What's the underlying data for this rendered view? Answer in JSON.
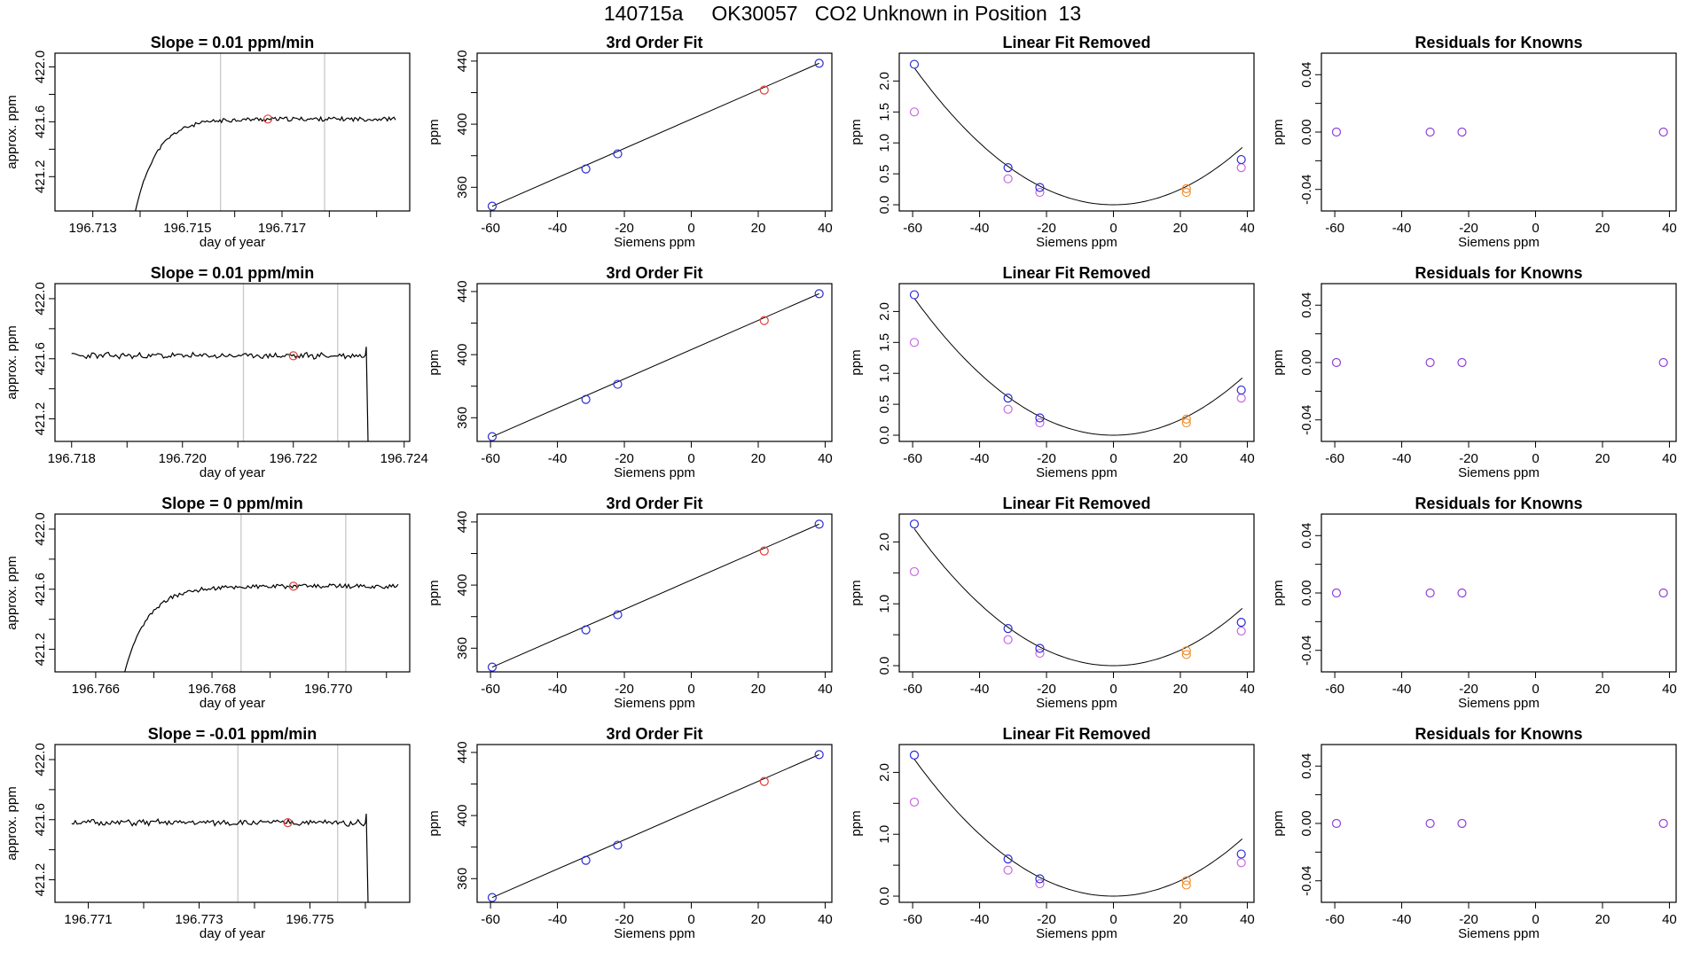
{
  "title": "140715a     OK30057   CO2 Unknown in Position  13",
  "colors": {
    "trace": "#000000",
    "vline": "#c8c8c8",
    "marker": "#e0403a",
    "known": "#2b2bd8",
    "sample": "#f09030",
    "residual": "#9040d8",
    "removed": "#c866e0",
    "curve": "#000000"
  },
  "chart_data": [
    {
      "id": "r1-ts",
      "type": "line",
      "title": "Slope =  0.01  ppm/min",
      "xlabel": "day of year",
      "ylabel": "approx. ppm",
      "xlim": [
        196.7122,
        196.7197
      ],
      "ylim": [
        420.95,
        422.1
      ],
      "xticks": [
        196.713,
        196.714,
        196.715,
        196.716,
        196.717,
        196.718,
        196.719
      ],
      "xtick_labels": [
        "196.713",
        "",
        "196.715",
        "",
        "196.717",
        "",
        ""
      ],
      "yticks": [
        421.2,
        421.4,
        421.6,
        421.8,
        422.0
      ],
      "ytick_labels": [
        "421.2",
        "",
        "421.6",
        "",
        "422.0"
      ],
      "vlines": [
        196.7157,
        196.7179
      ],
      "marker": [
        196.7167,
        421.62
      ],
      "trace": {
        "shape": "rise",
        "x0": 196.7139,
        "x1": 196.7194,
        "level": 421.62,
        "start": 420.95,
        "tau": 0.00045,
        "seed": 11
      }
    },
    {
      "id": "r1-fit",
      "type": "scatter",
      "title": "3rd Order Fit",
      "xlabel": "Siemens ppm",
      "ylabel": "ppm",
      "xlim": [
        -64,
        42
      ],
      "ylim": [
        345,
        445
      ],
      "xticks": [
        -60,
        -40,
        -20,
        0,
        20,
        40
      ],
      "xtick_labels": [
        "-60",
        "-40",
        "-20",
        "0",
        "20",
        "40"
      ],
      "yticks": [
        360,
        380,
        400,
        420,
        440
      ],
      "ytick_labels": [
        "360",
        "",
        "400",
        "",
        "440"
      ],
      "known_points": [
        [
          -59.5,
          348.0
        ],
        [
          -31.5,
          371.6
        ],
        [
          -22.0,
          381.2
        ],
        [
          38.2,
          438.6
        ]
      ],
      "sample_points": [
        [
          21.8,
          421.6
        ]
      ],
      "line": [
        [
          -59.5,
          348.0
        ],
        [
          38.2,
          438.6
        ]
      ]
    },
    {
      "id": "r1-lin",
      "type": "scatter",
      "title": "Linear Fit Removed",
      "xlabel": "Siemens ppm",
      "ylabel": "ppm",
      "xlim": [
        -64,
        42
      ],
      "ylim": [
        -0.1,
        2.45
      ],
      "xticks": [
        -60,
        -40,
        -20,
        0,
        20,
        40
      ],
      "xtick_labels": [
        "-60",
        "-40",
        "-20",
        "0",
        "20",
        "40"
      ],
      "yticks": [
        0,
        0.5,
        1,
        1.5,
        2
      ],
      "ytick_labels": [
        "0.0",
        "0.5",
        "1.0",
        "1.5",
        "2.0"
      ],
      "curve_coef": 0.000625,
      "known_points": [
        [
          -59.5,
          2.27
        ],
        [
          -31.5,
          0.6
        ],
        [
          -22.0,
          0.28
        ],
        [
          38.2,
          0.73
        ]
      ],
      "sample_points": [
        [
          21.8,
          0.26
        ],
        [
          21.8,
          0.2
        ]
      ],
      "removed_points": [
        [
          -59.5,
          1.5
        ],
        [
          -31.5,
          0.42
        ],
        [
          -22.0,
          0.2
        ],
        [
          38.2,
          0.6
        ]
      ]
    },
    {
      "id": "r1-res",
      "type": "scatter",
      "title": "Residuals for Knowns",
      "xlabel": "Siemens ppm",
      "ylabel": "ppm",
      "xlim": [
        -64,
        42
      ],
      "ylim": [
        -0.055,
        0.055
      ],
      "xticks": [
        -60,
        -40,
        -20,
        0,
        20,
        40
      ],
      "xtick_labels": [
        "-60",
        "-40",
        "-20",
        "0",
        "20",
        "40"
      ],
      "yticks": [
        -0.04,
        -0.02,
        0,
        0.02,
        0.04
      ],
      "ytick_labels": [
        "-0.04",
        "",
        "0.00",
        "",
        "0.04"
      ],
      "residual_points": [
        [
          -59.5,
          0
        ],
        [
          -31.5,
          0
        ],
        [
          -22.0,
          0
        ],
        [
          38.2,
          0
        ]
      ]
    },
    {
      "id": "r2-ts",
      "type": "line",
      "title": "Slope =  0.01  ppm/min",
      "xlabel": "day of year",
      "ylabel": "approx. ppm",
      "xlim": [
        196.7177,
        196.7241
      ],
      "ylim": [
        421.05,
        422.1
      ],
      "xticks": [
        196.718,
        196.719,
        196.72,
        196.721,
        196.722,
        196.723,
        196.724
      ],
      "xtick_labels": [
        "196.718",
        "",
        "196.720",
        "",
        "196.722",
        "",
        "196.724"
      ],
      "vlines": [
        196.7211,
        196.7228
      ],
      "marker": [
        196.722,
        421.62
      ],
      "yticks": [
        421.2,
        421.4,
        421.6,
        421.8,
        422.0
      ],
      "ytick_labels": [
        "421.2",
        "",
        "421.6",
        "",
        "422.0"
      ],
      "trace": {
        "shape": "drop",
        "x0": 196.718,
        "x1": 196.7233,
        "level": 421.62,
        "end": 421.05,
        "seed": 23
      }
    },
    {
      "id": "r2-fit",
      "type": "scatter",
      "title": "3rd Order Fit",
      "xlabel": "Siemens ppm",
      "ylabel": "ppm",
      "xlim": [
        -64,
        42
      ],
      "ylim": [
        345,
        445
      ],
      "xticks": [
        -60,
        -40,
        -20,
        0,
        20,
        40
      ],
      "xtick_labels": [
        "-60",
        "-40",
        "-20",
        "0",
        "20",
        "40"
      ],
      "yticks": [
        360,
        380,
        400,
        420,
        440
      ],
      "ytick_labels": [
        "360",
        "",
        "400",
        "",
        "440"
      ],
      "known_points": [
        [
          -59.5,
          348.0
        ],
        [
          -31.5,
          371.6
        ],
        [
          -22.0,
          381.2
        ],
        [
          38.2,
          438.6
        ]
      ],
      "sample_points": [
        [
          21.8,
          421.6
        ]
      ],
      "line": [
        [
          -59.5,
          348.0
        ],
        [
          38.2,
          438.6
        ]
      ]
    },
    {
      "id": "r2-lin",
      "type": "scatter",
      "title": "Linear Fit Removed",
      "xlabel": "Siemens ppm",
      "ylabel": "ppm",
      "xlim": [
        -64,
        42
      ],
      "ylim": [
        -0.1,
        2.45
      ],
      "xticks": [
        -60,
        -40,
        -20,
        0,
        20,
        40
      ],
      "xtick_labels": [
        "-60",
        "-40",
        "-20",
        "0",
        "20",
        "40"
      ],
      "yticks": [
        0,
        0.5,
        1,
        1.5,
        2
      ],
      "ytick_labels": [
        "0.0",
        "0.5",
        "1.0",
        "1.5",
        "2.0"
      ],
      "curve_coef": 0.000625,
      "known_points": [
        [
          -59.5,
          2.27
        ],
        [
          -31.5,
          0.6
        ],
        [
          -22.0,
          0.28
        ],
        [
          38.2,
          0.73
        ]
      ],
      "sample_points": [
        [
          21.8,
          0.26
        ],
        [
          21.8,
          0.2
        ]
      ],
      "removed_points": [
        [
          -59.5,
          1.5
        ],
        [
          -31.5,
          0.42
        ],
        [
          -22.0,
          0.2
        ],
        [
          38.2,
          0.6
        ]
      ]
    },
    {
      "id": "r2-res",
      "type": "scatter",
      "title": "Residuals for Knowns",
      "xlabel": "Siemens ppm",
      "ylabel": "ppm",
      "xlim": [
        -64,
        42
      ],
      "ylim": [
        -0.055,
        0.055
      ],
      "xticks": [
        -60,
        -40,
        -20,
        0,
        20,
        40
      ],
      "xtick_labels": [
        "-60",
        "-40",
        "-20",
        "0",
        "20",
        "40"
      ],
      "yticks": [
        -0.04,
        -0.02,
        0,
        0.02,
        0.04
      ],
      "ytick_labels": [
        "-0.04",
        "",
        "0.00",
        "",
        "0.04"
      ],
      "residual_points": [
        [
          -59.5,
          0
        ],
        [
          -31.5,
          0
        ],
        [
          -22.0,
          0
        ],
        [
          38.2,
          0
        ]
      ]
    },
    {
      "id": "r3-ts",
      "type": "line",
      "title": "Slope =  0  ppm/min",
      "xlabel": "day of year",
      "ylabel": "approx. ppm",
      "xlim": [
        196.7653,
        196.7714
      ],
      "ylim": [
        421.05,
        422.1
      ],
      "xticks": [
        196.766,
        196.767,
        196.768,
        196.769,
        196.77,
        196.771
      ],
      "xtick_labels": [
        "196.766",
        "",
        "196.768",
        "",
        "196.770",
        ""
      ],
      "vlines": [
        196.7685,
        196.7703
      ],
      "marker": [
        196.7694,
        421.62
      ],
      "yticks": [
        421.2,
        421.4,
        421.6,
        421.8,
        422.0
      ],
      "ytick_labels": [
        "421.2",
        "",
        "421.6",
        "",
        "422.0"
      ],
      "trace": {
        "shape": "rise",
        "x0": 196.7665,
        "x1": 196.7712,
        "level": 421.62,
        "start": 421.05,
        "tau": 0.0004,
        "seed": 37
      }
    },
    {
      "id": "r3-fit",
      "type": "scatter",
      "title": "3rd Order Fit",
      "xlabel": "Siemens ppm",
      "ylabel": "ppm",
      "xlim": [
        -64,
        42
      ],
      "ylim": [
        345,
        445
      ],
      "xticks": [
        -60,
        -40,
        -20,
        0,
        20,
        40
      ],
      "xtick_labels": [
        "-60",
        "-40",
        "-20",
        "0",
        "20",
        "40"
      ],
      "yticks": [
        360,
        380,
        400,
        420,
        440
      ],
      "ytick_labels": [
        "360",
        "",
        "400",
        "",
        "440"
      ],
      "known_points": [
        [
          -59.5,
          348.0
        ],
        [
          -31.5,
          371.6
        ],
        [
          -22.0,
          381.2
        ],
        [
          38.2,
          438.6
        ]
      ],
      "sample_points": [
        [
          21.8,
          421.6
        ]
      ],
      "line": [
        [
          -59.5,
          348.0
        ],
        [
          38.2,
          438.6
        ]
      ]
    },
    {
      "id": "r3-lin",
      "type": "scatter",
      "title": "Linear Fit Removed",
      "xlabel": "Siemens ppm",
      "ylabel": "ppm",
      "xlim": [
        -64,
        42
      ],
      "ylim": [
        -0.1,
        2.45
      ],
      "xticks": [
        -60,
        -40,
        -20,
        0,
        20,
        40
      ],
      "xtick_labels": [
        "-60",
        "-40",
        "-20",
        "0",
        "20",
        "40"
      ],
      "yticks": [
        0,
        0.5,
        1,
        1.5,
        2
      ],
      "ytick_labels": [
        "0.0",
        "",
        "1.0",
        "",
        "2.0"
      ],
      "curve_coef": 0.000625,
      "known_points": [
        [
          -59.5,
          2.29
        ],
        [
          -31.5,
          0.6
        ],
        [
          -22.0,
          0.28
        ],
        [
          38.2,
          0.7
        ]
      ],
      "sample_points": [
        [
          21.8,
          0.24
        ],
        [
          21.8,
          0.18
        ]
      ],
      "removed_points": [
        [
          -59.5,
          1.52
        ],
        [
          -31.5,
          0.42
        ],
        [
          -22.0,
          0.2
        ],
        [
          38.2,
          0.56
        ]
      ]
    },
    {
      "id": "r3-res",
      "type": "scatter",
      "title": "Residuals for Knowns",
      "xlabel": "Siemens ppm",
      "ylabel": "ppm",
      "xlim": [
        -64,
        42
      ],
      "ylim": [
        -0.055,
        0.055
      ],
      "xticks": [
        -60,
        -40,
        -20,
        0,
        20,
        40
      ],
      "xtick_labels": [
        "-60",
        "-40",
        "-20",
        "0",
        "20",
        "40"
      ],
      "yticks": [
        -0.04,
        -0.02,
        0,
        0.02,
        0.04
      ],
      "ytick_labels": [
        "-0.04",
        "",
        "0.00",
        "",
        "0.04"
      ],
      "residual_points": [
        [
          -59.5,
          0
        ],
        [
          -31.5,
          0
        ],
        [
          -22.0,
          0
        ],
        [
          38.2,
          0
        ]
      ]
    },
    {
      "id": "r4-ts",
      "type": "line",
      "title": "Slope =  -0.01  ppm/min",
      "xlabel": "day of year",
      "ylabel": "approx. ppm",
      "xlim": [
        196.7704,
        196.7768
      ],
      "ylim": [
        421.05,
        422.1
      ],
      "xticks": [
        196.771,
        196.772,
        196.773,
        196.774,
        196.775,
        196.776
      ],
      "xtick_labels": [
        "196.771",
        "",
        "196.773",
        "",
        "196.775",
        ""
      ],
      "vlines": [
        196.7737,
        196.7755
      ],
      "marker": [
        196.7746,
        421.58
      ],
      "yticks": [
        421.2,
        421.4,
        421.6,
        421.8,
        422.0
      ],
      "ytick_labels": [
        "421.2",
        "",
        "421.6",
        "",
        "422.0"
      ],
      "trace": {
        "shape": "drop",
        "x0": 196.7707,
        "x1": 196.776,
        "level": 421.58,
        "end": 421.05,
        "seed": 51
      }
    },
    {
      "id": "r4-fit",
      "type": "scatter",
      "title": "3rd Order Fit",
      "xlabel": "Siemens ppm",
      "ylabel": "ppm",
      "xlim": [
        -64,
        42
      ],
      "ylim": [
        345,
        445
      ],
      "xticks": [
        -60,
        -40,
        -20,
        0,
        20,
        40
      ],
      "xtick_labels": [
        "-60",
        "-40",
        "-20",
        "0",
        "20",
        "40"
      ],
      "yticks": [
        360,
        380,
        400,
        420,
        440
      ],
      "ytick_labels": [
        "360",
        "",
        "400",
        "",
        "440"
      ],
      "known_points": [
        [
          -59.5,
          348.0
        ],
        [
          -31.5,
          371.6
        ],
        [
          -22.0,
          381.2
        ],
        [
          38.2,
          438.6
        ]
      ],
      "sample_points": [
        [
          21.8,
          421.6
        ]
      ],
      "line": [
        [
          -59.5,
          348.0
        ],
        [
          38.2,
          438.6
        ]
      ]
    },
    {
      "id": "r4-lin",
      "type": "scatter",
      "title": "Linear Fit Removed",
      "xlabel": "Siemens ppm",
      "ylabel": "ppm",
      "xlim": [
        -64,
        42
      ],
      "ylim": [
        -0.1,
        2.45
      ],
      "xticks": [
        -60,
        -40,
        -20,
        0,
        20,
        40
      ],
      "xtick_labels": [
        "-60",
        "-40",
        "-20",
        "0",
        "20",
        "40"
      ],
      "yticks": [
        0,
        0.5,
        1,
        1.5,
        2
      ],
      "ytick_labels": [
        "0.0",
        "",
        "1.0",
        "",
        "2.0"
      ],
      "curve_coef": 0.000625,
      "known_points": [
        [
          -59.5,
          2.28
        ],
        [
          -31.5,
          0.6
        ],
        [
          -22.0,
          0.28
        ],
        [
          38.2,
          0.68
        ]
      ],
      "sample_points": [
        [
          21.8,
          0.25
        ],
        [
          21.8,
          0.18
        ]
      ],
      "removed_points": [
        [
          -59.5,
          1.52
        ],
        [
          -31.5,
          0.42
        ],
        [
          -22.0,
          0.2
        ],
        [
          38.2,
          0.54
        ]
      ]
    },
    {
      "id": "r4-res",
      "type": "scatter",
      "title": "Residuals for Knowns",
      "xlabel": "Siemens ppm",
      "ylabel": "ppm",
      "xlim": [
        -64,
        42
      ],
      "ylim": [
        -0.055,
        0.055
      ],
      "xticks": [
        -60,
        -40,
        -20,
        0,
        20,
        40
      ],
      "xtick_labels": [
        "-60",
        "-40",
        "-20",
        "0",
        "20",
        "40"
      ],
      "yticks": [
        -0.04,
        -0.02,
        0,
        0.02,
        0.04
      ],
      "ytick_labels": [
        "-0.04",
        "",
        "0.00",
        "",
        "0.04"
      ],
      "residual_points": [
        [
          -59.5,
          0
        ],
        [
          -31.5,
          0
        ],
        [
          -22.0,
          0
        ],
        [
          38.2,
          0
        ]
      ]
    }
  ]
}
